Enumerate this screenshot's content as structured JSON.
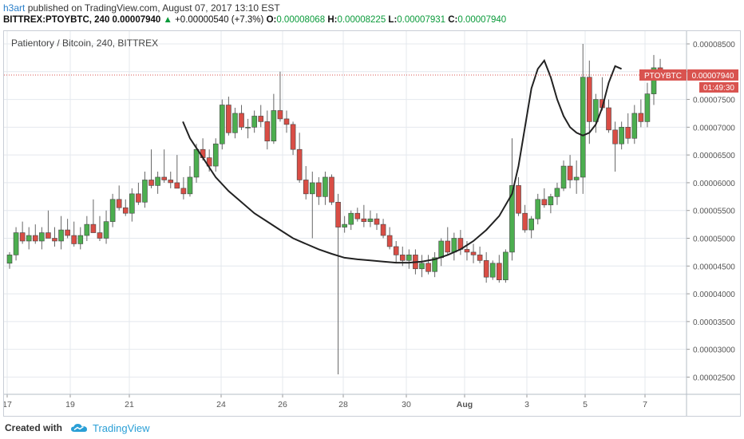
{
  "header": {
    "username": "h3art",
    "published_text": " published on TradingView.com, August 07, 2017 13:10 EST",
    "symbol_line": "BITTREX:PTOYBTC, 240  0.00007940",
    "change_arrow": "▲",
    "change_text": "+0.00000540 (+7.3%)",
    "o_label": "O:",
    "o_value": "0.00008068",
    "h_label": "H:",
    "h_value": "0.00008225",
    "l_label": "L:",
    "l_value": "0.00007931",
    "c_label": "C:",
    "c_value": "0.00007940"
  },
  "footer": {
    "created_with": "Created with",
    "brand": "TradingView",
    "logo_icon": "tradingview-cloud-icon"
  },
  "colors": {
    "up": "#4cae4f",
    "down": "#d94d45",
    "wick": "#666666",
    "ma_line": "#222222",
    "price_tag": "#d9534f",
    "grid": "#e4e8ee",
    "axis_text": "#555555"
  },
  "chart_data": {
    "type": "candlestick",
    "title": "Patientory / Bitcoin, 240, BITTREX",
    "x_tick_labels": [
      "17",
      "19",
      "21",
      "24",
      "26",
      "28",
      "30",
      "Aug",
      "3",
      "5",
      "7"
    ],
    "y_tick_labels": [
      "0.00002500",
      "0.00003000",
      "0.00003500",
      "0.00004000",
      "0.00004500",
      "0.00005000",
      "0.00005500",
      "0.00006000",
      "0.00006500",
      "0.00007000",
      "0.00007500",
      "0.00008000",
      "0.00008500"
    ],
    "ylim": [
      2.19e-05,
      8.73e-05
    ],
    "last_price_label": "PTOYBTC",
    "last_price": "0.00007940",
    "countdown": "01:49:30",
    "candles": [
      [
        4.55,
        4.75,
        4.45,
        4.7
      ],
      [
        4.7,
        5.2,
        4.6,
        5.1
      ],
      [
        5.1,
        5.3,
        4.9,
        4.95
      ],
      [
        4.95,
        5.2,
        4.8,
        5.05
      ],
      [
        5.05,
        5.25,
        4.9,
        4.95
      ],
      [
        4.95,
        5.2,
        4.8,
        5.1
      ],
      [
        5.1,
        5.5,
        5.0,
        5.0
      ],
      [
        5.0,
        5.2,
        4.85,
        4.95
      ],
      [
        4.95,
        5.4,
        4.8,
        5.15
      ],
      [
        5.15,
        5.35,
        5.0,
        5.05
      ],
      [
        5.05,
        5.3,
        4.85,
        4.9
      ],
      [
        4.9,
        5.2,
        4.8,
        5.05
      ],
      [
        5.05,
        5.4,
        4.95,
        5.25
      ],
      [
        5.25,
        5.7,
        5.1,
        5.1
      ],
      [
        5.1,
        5.4,
        4.95,
        5.0
      ],
      [
        5.0,
        5.5,
        4.9,
        5.3
      ],
      [
        5.3,
        5.8,
        5.2,
        5.7
      ],
      [
        5.7,
        5.95,
        5.5,
        5.55
      ],
      [
        5.55,
        5.7,
        5.4,
        5.45
      ],
      [
        5.45,
        5.9,
        5.3,
        5.8
      ],
      [
        5.8,
        6.0,
        5.6,
        5.65
      ],
      [
        5.65,
        6.2,
        5.55,
        6.05
      ],
      [
        6.05,
        6.6,
        5.9,
        5.95
      ],
      [
        5.95,
        6.2,
        5.8,
        6.1
      ],
      [
        6.1,
        6.6,
        6.0,
        6.05
      ],
      [
        6.05,
        6.2,
        5.9,
        6.0
      ],
      [
        6.0,
        6.5,
        5.9,
        5.9
      ],
      [
        5.9,
        6.1,
        5.7,
        5.8
      ],
      [
        5.8,
        6.3,
        5.75,
        6.1
      ],
      [
        6.1,
        6.7,
        6.0,
        6.6
      ],
      [
        6.6,
        6.8,
        6.4,
        6.45
      ],
      [
        6.45,
        6.6,
        6.2,
        6.3
      ],
      [
        6.3,
        6.8,
        6.2,
        6.7
      ],
      [
        6.7,
        7.5,
        6.6,
        7.4
      ],
      [
        7.4,
        7.55,
        6.85,
        6.9
      ],
      [
        6.9,
        7.35,
        6.8,
        7.25
      ],
      [
        7.25,
        7.4,
        6.95,
        7.0
      ],
      [
        7.0,
        7.15,
        6.8,
        7.0
      ],
      [
        7.0,
        7.3,
        6.9,
        7.2
      ],
      [
        7.2,
        7.4,
        7.0,
        7.1
      ],
      [
        7.1,
        7.3,
        6.6,
        6.75
      ],
      [
        6.75,
        7.6,
        6.7,
        7.3
      ],
      [
        7.3,
        8.0,
        7.1,
        7.15
      ],
      [
        7.15,
        7.3,
        6.9,
        7.05
      ],
      [
        7.05,
        7.1,
        6.5,
        6.6
      ],
      [
        6.6,
        6.9,
        6.0,
        6.05
      ],
      [
        6.05,
        6.3,
        5.7,
        5.8
      ],
      [
        5.8,
        6.2,
        5.0,
        6.0
      ],
      [
        6.0,
        6.1,
        5.6,
        5.75
      ],
      [
        5.75,
        6.2,
        5.6,
        6.1
      ],
      [
        6.1,
        6.15,
        5.6,
        5.65
      ],
      [
        5.65,
        5.8,
        2.55,
        5.2
      ],
      [
        5.2,
        5.4,
        5.1,
        5.25
      ],
      [
        5.25,
        5.5,
        5.15,
        5.45
      ],
      [
        5.45,
        5.55,
        5.3,
        5.35
      ],
      [
        5.35,
        5.6,
        5.2,
        5.3
      ],
      [
        5.3,
        5.5,
        5.2,
        5.35
      ],
      [
        5.35,
        5.45,
        5.15,
        5.25
      ],
      [
        5.25,
        5.35,
        5.0,
        5.05
      ],
      [
        5.05,
        5.2,
        4.8,
        4.85
      ],
      [
        4.85,
        4.95,
        4.55,
        4.7
      ],
      [
        4.7,
        4.85,
        4.5,
        4.6
      ],
      [
        4.6,
        4.8,
        4.45,
        4.7
      ],
      [
        4.7,
        4.8,
        4.35,
        4.45
      ],
      [
        4.45,
        4.7,
        4.3,
        4.55
      ],
      [
        4.55,
        4.7,
        4.35,
        4.4
      ],
      [
        4.4,
        4.75,
        4.3,
        4.65
      ],
      [
        4.65,
        5.0,
        4.5,
        4.95
      ],
      [
        4.95,
        5.2,
        4.7,
        4.75
      ],
      [
        4.75,
        5.1,
        4.6,
        5.0
      ],
      [
        5.0,
        5.15,
        4.7,
        4.8
      ],
      [
        4.8,
        4.95,
        4.6,
        4.75
      ],
      [
        4.75,
        4.9,
        4.55,
        4.7
      ],
      [
        4.7,
        4.85,
        4.55,
        4.6
      ],
      [
        4.6,
        4.75,
        4.2,
        4.3
      ],
      [
        4.3,
        4.6,
        4.25,
        4.55
      ],
      [
        4.55,
        4.7,
        4.2,
        4.25
      ],
      [
        4.25,
        4.8,
        4.2,
        4.75
      ],
      [
        4.75,
        6.8,
        4.6,
        5.95
      ],
      [
        5.95,
        6.1,
        5.4,
        5.45
      ],
      [
        5.45,
        5.6,
        5.1,
        5.15
      ],
      [
        5.15,
        5.4,
        5.0,
        5.35
      ],
      [
        5.35,
        5.8,
        5.25,
        5.7
      ],
      [
        5.7,
        5.9,
        5.55,
        5.6
      ],
      [
        5.6,
        5.8,
        5.45,
        5.75
      ],
      [
        5.75,
        6.0,
        5.6,
        5.9
      ],
      [
        5.9,
        6.4,
        5.85,
        6.3
      ],
      [
        6.3,
        6.5,
        5.9,
        6.05
      ],
      [
        6.05,
        6.4,
        5.8,
        6.1
      ],
      [
        6.1,
        8.5,
        5.8,
        7.9
      ],
      [
        7.9,
        8.2,
        6.7,
        7.1
      ],
      [
        7.1,
        7.6,
        6.9,
        7.5
      ],
      [
        7.5,
        7.9,
        7.3,
        7.35
      ],
      [
        7.35,
        7.5,
        6.9,
        6.95
      ],
      [
        6.95,
        7.1,
        6.2,
        6.7
      ],
      [
        6.7,
        7.1,
        6.6,
        7.0
      ],
      [
        7.0,
        7.25,
        6.7,
        6.8
      ],
      [
        6.8,
        7.4,
        6.7,
        7.25
      ],
      [
        7.25,
        7.5,
        7.0,
        7.1
      ],
      [
        7.1,
        7.8,
        7.0,
        7.6
      ],
      [
        7.6,
        8.3,
        7.4,
        8.07
      ],
      [
        8.07,
        8.23,
        7.93,
        7.94
      ]
    ],
    "ma_line": [
      [
        26.9,
        7.1
      ],
      [
        28.0,
        6.8
      ],
      [
        30.0,
        6.45
      ],
      [
        32.0,
        6.1
      ],
      [
        34.0,
        5.85
      ],
      [
        36.0,
        5.65
      ],
      [
        38.0,
        5.45
      ],
      [
        40.0,
        5.3
      ],
      [
        42.0,
        5.15
      ],
      [
        44.0,
        5.0
      ],
      [
        46.0,
        4.9
      ],
      [
        48.0,
        4.8
      ],
      [
        50.0,
        4.72
      ],
      [
        52.0,
        4.65
      ],
      [
        54.0,
        4.62
      ],
      [
        56.0,
        4.6
      ],
      [
        58.0,
        4.58
      ],
      [
        60.0,
        4.56
      ],
      [
        62.0,
        4.56
      ],
      [
        64.0,
        4.58
      ],
      [
        66.0,
        4.62
      ],
      [
        68.0,
        4.7
      ],
      [
        70.0,
        4.8
      ],
      [
        72.0,
        4.95
      ],
      [
        74.0,
        5.15
      ],
      [
        76.0,
        5.4
      ],
      [
        78.0,
        5.8
      ],
      [
        79.0,
        6.3
      ],
      [
        80.0,
        7.0
      ],
      [
        81.0,
        7.7
      ],
      [
        82.0,
        8.05
      ],
      [
        83.0,
        8.2
      ],
      [
        84.0,
        7.9
      ],
      [
        85.0,
        7.5
      ],
      [
        86.0,
        7.2
      ],
      [
        87.0,
        7.0
      ],
      [
        88.0,
        6.9
      ],
      [
        89.0,
        6.85
      ],
      [
        90.0,
        6.9
      ],
      [
        91.0,
        7.05
      ],
      [
        92.0,
        7.35
      ],
      [
        93.0,
        7.8
      ],
      [
        94.0,
        8.1
      ],
      [
        95.0,
        8.05
      ]
    ]
  }
}
